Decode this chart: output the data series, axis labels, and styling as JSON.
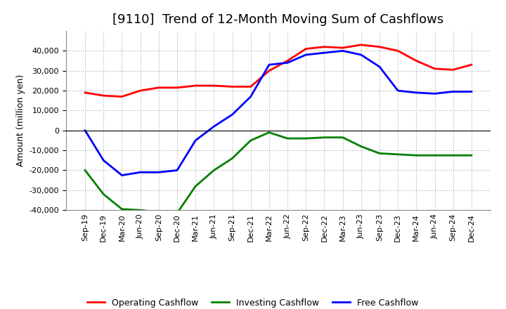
{
  "title": "[9110]  Trend of 12-Month Moving Sum of Cashflows",
  "ylabel": "Amount (million yen)",
  "xlabels": [
    "Sep-19",
    "Dec-19",
    "Mar-20",
    "Jun-20",
    "Sep-20",
    "Dec-20",
    "Mar-21",
    "Jun-21",
    "Sep-21",
    "Dec-21",
    "Mar-22",
    "Jun-22",
    "Sep-22",
    "Dec-22",
    "Mar-23",
    "Jun-23",
    "Sep-23",
    "Dec-23",
    "Mar-24",
    "Jun-24",
    "Sep-24",
    "Dec-24"
  ],
  "operating": [
    19000,
    17500,
    17000,
    20000,
    21500,
    21500,
    22500,
    22500,
    22000,
    22000,
    30000,
    35000,
    41000,
    42000,
    41500,
    43000,
    42000,
    40000,
    35000,
    31000,
    30500,
    33000
  ],
  "investing": [
    -20000,
    -32000,
    -39500,
    -40000,
    -41000,
    -41500,
    -28000,
    -20000,
    -14000,
    -5000,
    -1000,
    -4000,
    -4000,
    -3500,
    -3500,
    -8000,
    -11500,
    -12000,
    -12500,
    -12500,
    -12500,
    -12500
  ],
  "free": [
    0,
    -15000,
    -22500,
    -21000,
    -21000,
    -20000,
    -5000,
    2000,
    8000,
    17000,
    33000,
    34000,
    38000,
    39000,
    40000,
    38000,
    32000,
    20000,
    19000,
    18500,
    19500,
    19500
  ],
  "operating_color": "#ff0000",
  "investing_color": "#008000",
  "free_color": "#0000ff",
  "ylim": [
    -40000,
    50000
  ],
  "yticks": [
    -40000,
    -30000,
    -20000,
    -10000,
    0,
    10000,
    20000,
    30000,
    40000
  ],
  "bg_color": "#ffffff",
  "grid_color": "#aaaaaa",
  "title_fontsize": 13,
  "label_fontsize": 9,
  "tick_fontsize": 8,
  "legend_fontsize": 9,
  "linewidth": 2.0
}
